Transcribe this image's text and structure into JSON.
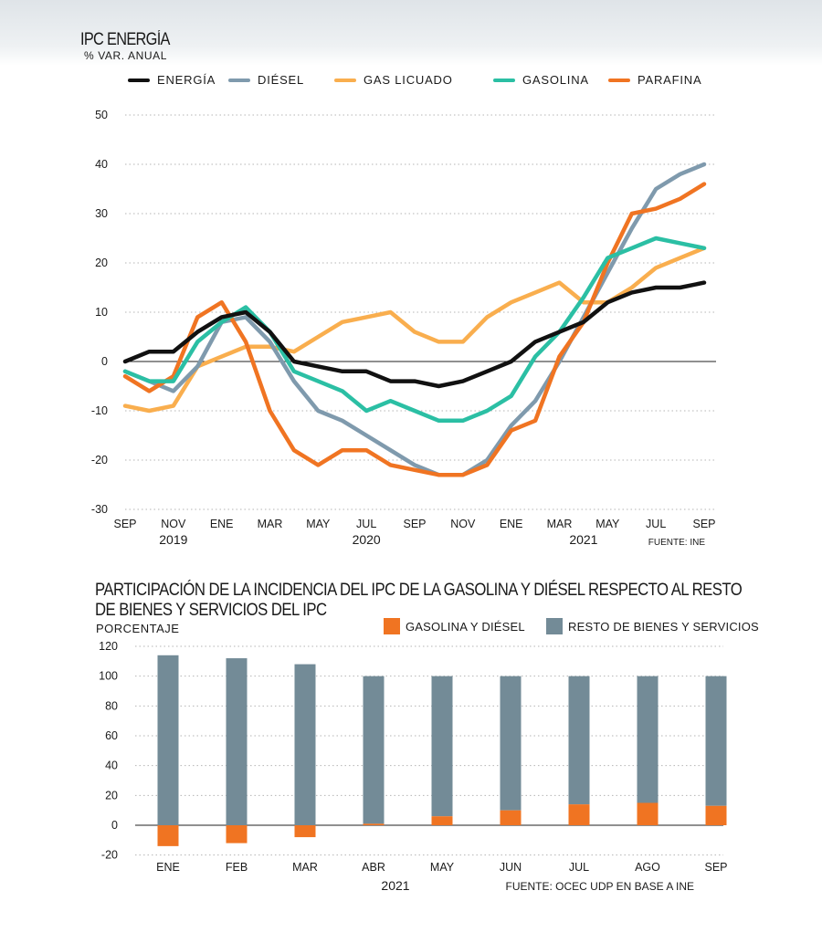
{
  "chart1": {
    "title": "IPC ENERGÍA",
    "subtitle": "% VAR. ANUAL",
    "source": "FUENTE: INE",
    "colors": {
      "energia": "#111111",
      "diesel": "#7f9aad",
      "gas": "#f9ae4e",
      "gasolina": "#2bbfa4",
      "parafina": "#f07422"
    },
    "legend": [
      {
        "label": "ENERGÍA",
        "color": "#111111"
      },
      {
        "label": "DIÉSEL",
        "color": "#7f9aad"
      },
      {
        "label": "GAS LICUADO",
        "color": "#f9ae4e"
      },
      {
        "label": "GASOLINA",
        "color": "#2bbfa4"
      },
      {
        "label": "PARAFINA",
        "color": "#f07422"
      }
    ],
    "ytick_labels": [
      "50",
      "40",
      "30",
      "20",
      "10",
      "0",
      "-10",
      "-20",
      "-30"
    ],
    "xtick_labels": [
      "SEP",
      "NOV",
      "ENE",
      "MAR",
      "MAY",
      "JUL",
      "SEP",
      "NOV",
      "ENE",
      "MAR",
      "MAY",
      "JUL",
      "SEP"
    ],
    "year_labels": [
      "2019",
      "2020",
      "2021"
    ]
  },
  "chart2": {
    "title_line1": "PARTICIPACIÓN DE LA INCIDENCIA DEL IPC DE LA GASOLINA Y DIÉSEL RESPECTO AL RESTO",
    "title_line2": "DE BIENES Y SERVICIOS DEL IPC",
    "ylabel": "PORCENTAJE",
    "legend": [
      {
        "label": "GASOLINA Y DIÉSEL",
        "color": "#f07422"
      },
      {
        "label": "RESTO DE BIENES Y SERVICIOS",
        "color": "#738b97"
      }
    ],
    "ytick_labels": [
      "120",
      "100",
      "80",
      "60",
      "40",
      "20",
      "0",
      "-20"
    ],
    "year_label": "2021",
    "source": "FUENTE: OCEC UDP EN BASE A INE"
  },
  "chart_data": [
    {
      "type": "line",
      "title": "IPC ENERGÍA",
      "ylabel": "% VAR. ANUAL",
      "ylim": [
        -30,
        50
      ],
      "x": [
        "2019-09",
        "2019-10",
        "2019-11",
        "2019-12",
        "2020-01",
        "2020-02",
        "2020-03",
        "2020-04",
        "2020-05",
        "2020-06",
        "2020-07",
        "2020-08",
        "2020-09",
        "2020-10",
        "2020-11",
        "2020-12",
        "2021-01",
        "2021-02",
        "2021-03",
        "2021-04",
        "2021-05",
        "2021-06",
        "2021-07",
        "2021-08",
        "2021-09"
      ],
      "series": [
        {
          "name": "ENERGÍA",
          "values": [
            0,
            2,
            2,
            6,
            9,
            10,
            6,
            0,
            -1,
            -2,
            -2,
            -4,
            -4,
            -5,
            -4,
            -2,
            0,
            4,
            6,
            8,
            12,
            14,
            15,
            15,
            16
          ]
        },
        {
          "name": "DIÉSEL",
          "values": [
            -2,
            -4,
            -6,
            -1,
            8,
            9,
            4,
            -4,
            -10,
            -12,
            -15,
            -18,
            -21,
            -23,
            -23,
            -20,
            -13,
            -8,
            0,
            9,
            18,
            27,
            35,
            38,
            40
          ]
        },
        {
          "name": "GAS LICUADO",
          "values": [
            -9,
            -10,
            -9,
            -1,
            1,
            3,
            3,
            2,
            5,
            8,
            9,
            10,
            6,
            4,
            4,
            9,
            12,
            14,
            16,
            12,
            12,
            15,
            19,
            21,
            23
          ]
        },
        {
          "name": "GASOLINA",
          "values": [
            -2,
            -4,
            -4,
            4,
            8,
            11,
            6,
            -2,
            -4,
            -6,
            -10,
            -8,
            -10,
            -12,
            -12,
            -10,
            -7,
            1,
            6,
            13,
            21,
            23,
            25,
            24,
            23
          ]
        },
        {
          "name": "PARAFINA",
          "values": [
            -3,
            -6,
            -3,
            9,
            12,
            4,
            -10,
            -18,
            -21,
            -18,
            -18,
            -21,
            -22,
            -23,
            -23,
            -21,
            -14,
            -12,
            1,
            8,
            20,
            30,
            31,
            33,
            36
          ]
        }
      ]
    },
    {
      "type": "bar",
      "title": "PARTICIPACIÓN DE LA INCIDENCIA DEL IPC DE LA GASOLINA Y DIÉSEL RESPECTO AL RESTO DE BIENES Y SERVICIOS DEL IPC",
      "xlabel": "2021",
      "ylabel": "PORCENTAJE",
      "ylim": [
        -20,
        120
      ],
      "categories": [
        "ENE",
        "FEB",
        "MAR",
        "ABR",
        "MAY",
        "JUN",
        "JUL",
        "AGO",
        "SEP"
      ],
      "series": [
        {
          "name": "GASOLINA Y DIÉSEL",
          "values": [
            -14,
            -12,
            -8,
            1,
            6,
            10,
            14,
            15,
            13
          ]
        },
        {
          "name": "RESTO DE BIENES Y SERVICIOS",
          "values": [
            114,
            112,
            108,
            99,
            94,
            90,
            86,
            85,
            87
          ]
        }
      ]
    }
  ]
}
